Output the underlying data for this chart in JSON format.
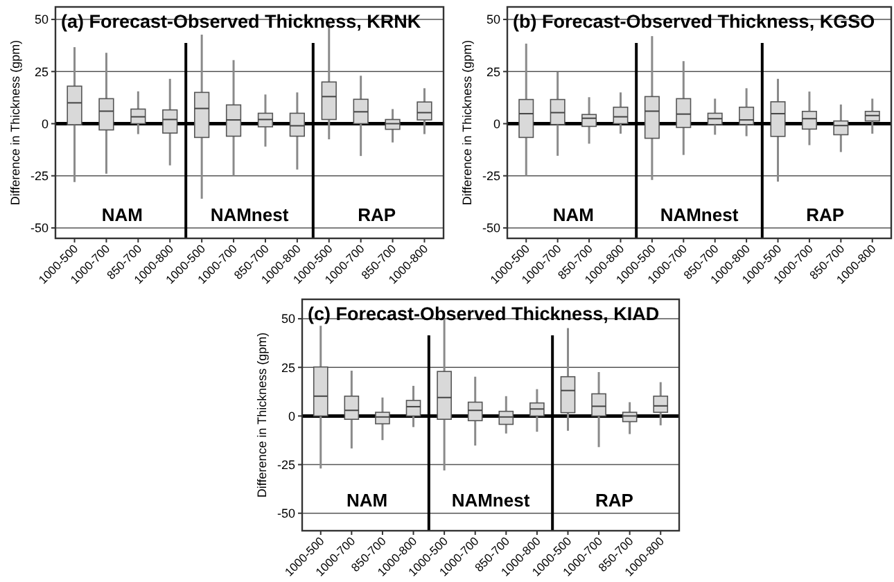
{
  "chart_data": [
    {
      "type": "box",
      "title": "(a) Forecast-Observed Thickness, KRNK",
      "ylabel": "Difference in Thickness (gpm)",
      "categories": [
        "1000-500",
        "1000-700",
        "850-700",
        "1000-800",
        "1000-500",
        "1000-700",
        "850-700",
        "1000-800",
        "1000-500",
        "1000-700",
        "850-700",
        "1000-800"
      ],
      "series": [
        {
          "color": "#d9d9d9",
          "boxes": [
            {
              "low": -28,
              "q1": -0.5,
              "median": 10,
              "q3": 18,
              "high": 36.7
            },
            {
              "low": -24,
              "q1": -3,
              "median": 6,
              "q3": 12,
              "high": 34
            },
            {
              "low": -5,
              "q1": 0,
              "median": 3.3,
              "q3": 7,
              "high": 15.5
            },
            {
              "low": -20,
              "q1": -4.5,
              "median": 2,
              "q3": 6.6,
              "high": 21.5
            },
            {
              "low": -36,
              "q1": -6.6,
              "median": 7.3,
              "q3": 15,
              "high": 42.7
            },
            {
              "low": -25,
              "q1": -6,
              "median": 1.8,
              "q3": 9,
              "high": 30.5
            },
            {
              "low": -11,
              "q1": -1.5,
              "median": 2,
              "q3": 5,
              "high": 14
            },
            {
              "low": -22,
              "q1": -6,
              "median": -1,
              "q3": 5,
              "high": 15
            },
            {
              "low": -7.5,
              "q1": 2,
              "median": 13,
              "q3": 20,
              "high": 49
            },
            {
              "low": -15.5,
              "q1": 0,
              "median": 5.7,
              "q3": 11.7,
              "high": 23
            },
            {
              "low": -9,
              "q1": -2.7,
              "median": 0,
              "q3": 2,
              "high": 7
            },
            {
              "low": -5,
              "q1": 1.8,
              "median": 5.3,
              "q3": 10.4,
              "high": 17
            }
          ]
        }
      ],
      "ylim": [
        -55,
        56
      ],
      "yticks": [
        -50,
        -25,
        0,
        25,
        50
      ],
      "grid": "y",
      "ref_lines": [
        {
          "axis": "y",
          "value": 0
        }
      ],
      "annotations": [
        "NAM",
        "NAMnest",
        "RAP"
      ]
    },
    {
      "type": "box",
      "title": "(b) Forecast-Observed Thickness, KGSO",
      "ylabel": "Difference in Thickness (gpm)",
      "categories": [
        "1000-500",
        "1000-700",
        "850-700",
        "1000-800",
        "1000-500",
        "1000-700",
        "850-700",
        "1000-800",
        "1000-500",
        "1000-700",
        "850-700",
        "1000-800"
      ],
      "series": [
        {
          "color": "#d9d9d9",
          "boxes": [
            {
              "low": -25,
              "q1": -6.6,
              "median": 4.8,
              "q3": 11.6,
              "high": 38.4
            },
            {
              "low": -15.4,
              "q1": -0.4,
              "median": 5.3,
              "q3": 11.6,
              "high": 24.8
            },
            {
              "low": -9.6,
              "q1": -1.3,
              "median": 2.6,
              "q3": 4.4,
              "high": 12.7
            },
            {
              "low": -4.8,
              "q1": 0,
              "median": 3.3,
              "q3": 7.9,
              "high": 15
            },
            {
              "low": -27,
              "q1": -7,
              "median": 6,
              "q3": 13,
              "high": 42
            },
            {
              "low": -15,
              "q1": -1.8,
              "median": 4.6,
              "q3": 12,
              "high": 30
            },
            {
              "low": -5.3,
              "q1": -0.4,
              "median": 2.4,
              "q3": 5,
              "high": 12
            },
            {
              "low": -6,
              "q1": -0.4,
              "median": 1.8,
              "q3": 7.9,
              "high": 17
            },
            {
              "low": -27.8,
              "q1": -6.1,
              "median": 4.8,
              "q3": 10.5,
              "high": 21.5
            },
            {
              "low": -10.3,
              "q1": -2.6,
              "median": 2.4,
              "q3": 5.9,
              "high": 15.4
            },
            {
              "low": -13.6,
              "q1": -5.3,
              "median": -0.9,
              "q3": 1.3,
              "high": 9.2
            },
            {
              "low": -4.8,
              "q1": 1.3,
              "median": 3.9,
              "q3": 5.9,
              "high": 12
            }
          ]
        }
      ],
      "ylim": [
        -55,
        56
      ],
      "yticks": [
        -50,
        -25,
        0,
        25,
        50
      ],
      "grid": "y",
      "ref_lines": [
        {
          "axis": "y",
          "value": 0
        }
      ],
      "annotations": [
        "NAM",
        "NAMnest",
        "RAP"
      ]
    },
    {
      "type": "box",
      "title": "(c) Forecast-Observed Thickness, KIAD",
      "ylabel": "Difference in Thickness (gpm)",
      "categories": [
        "1000-500",
        "1000-700",
        "850-700",
        "1000-800",
        "1000-500",
        "1000-700",
        "850-700",
        "1000-800",
        "1000-500",
        "1000-700",
        "850-700",
        "1000-800"
      ],
      "series": [
        {
          "color": "#d9d9d9",
          "boxes": [
            {
              "low": -27,
              "q1": 0,
              "median": 10.2,
              "q3": 25.2,
              "high": 46.4
            },
            {
              "low": -16.7,
              "q1": -1.7,
              "median": 2.9,
              "q3": 10.2,
              "high": 23.3
            },
            {
              "low": -12.4,
              "q1": -4,
              "median": -0.5,
              "q3": 1.9,
              "high": 9.5
            },
            {
              "low": -5.7,
              "q1": 0,
              "median": 4.8,
              "q3": 8,
              "high": 15.5
            },
            {
              "low": -28,
              "q1": -1.7,
              "median": 9.5,
              "q3": 22.9,
              "high": 50
            },
            {
              "low": -15.2,
              "q1": -2.4,
              "median": 2.9,
              "q3": 7.1,
              "high": 20.2
            },
            {
              "low": -9,
              "q1": -4.3,
              "median": -0.5,
              "q3": 2.4,
              "high": 10.2
            },
            {
              "low": -8.1,
              "q1": 0,
              "median": 3.6,
              "q3": 6.7,
              "high": 13.8
            },
            {
              "low": -7.6,
              "q1": 1.7,
              "median": 13.1,
              "q3": 20.2,
              "high": 45.2
            },
            {
              "low": -16,
              "q1": 0,
              "median": 5,
              "q3": 11.4,
              "high": 22.6
            },
            {
              "low": -9.3,
              "q1": -2.9,
              "median": 0,
              "q3": 1.9,
              "high": 7.1
            },
            {
              "low": -4.8,
              "q1": 1.9,
              "median": 5.2,
              "q3": 10.2,
              "high": 17.4
            }
          ]
        }
      ],
      "ylim": [
        -59,
        60
      ],
      "yticks": [
        -50,
        -25,
        0,
        25,
        50
      ],
      "grid": "y",
      "ref_lines": [
        {
          "axis": "y",
          "value": 0
        }
      ],
      "annotations": [
        "NAM",
        "NAMnest",
        "RAP"
      ]
    }
  ]
}
